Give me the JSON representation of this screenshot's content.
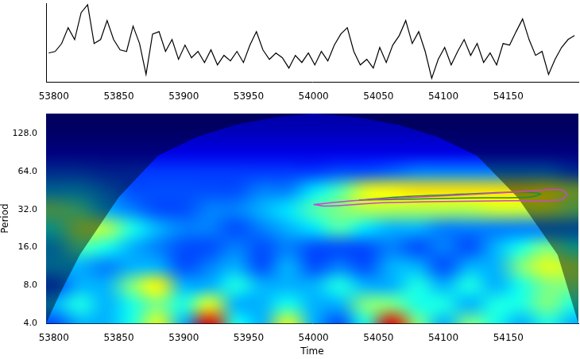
{
  "chart_data": [
    {
      "type": "line",
      "x": [
        53796,
        53801,
        53806,
        53811,
        53816,
        53821,
        53826,
        53831,
        53836,
        53841,
        53846,
        53851,
        53856,
        53861,
        53866,
        53871,
        53876,
        53881,
        53886,
        53891,
        53896,
        53901,
        53906,
        53911,
        53916,
        53921,
        53926,
        53931,
        53936,
        53941,
        53946,
        53951,
        53956,
        53961,
        53966,
        53971,
        53976,
        53981,
        53986,
        53991,
        53996,
        54001,
        54006,
        54011,
        54016,
        54021,
        54026,
        54031,
        54036,
        54041,
        54046,
        54051,
        54056,
        54061,
        54066,
        54071,
        54076,
        54081,
        54086,
        54091,
        54096,
        54101,
        54106,
        54111,
        54116,
        54121,
        54126,
        54131,
        54136,
        54141,
        54146,
        54151,
        54156,
        54161,
        54166,
        54171,
        54176,
        54181,
        54186,
        54191,
        54196,
        54201
      ],
      "values": [
        3.7,
        3.9,
        4.9,
        6.9,
        5.4,
        8.8,
        9.8,
        4.9,
        5.4,
        7.8,
        5.4,
        4.1,
        3.9,
        7.1,
        4.9,
        1.0,
        6.1,
        6.4,
        3.9,
        5.4,
        2.9,
        4.7,
        3.1,
        3.9,
        2.5,
        4.1,
        2.2,
        3.4,
        2.7,
        3.9,
        2.5,
        4.7,
        6.4,
        4.1,
        2.9,
        3.7,
        3.1,
        1.8,
        3.4,
        2.5,
        3.7,
        2.2,
        3.9,
        2.7,
        4.7,
        6.1,
        6.9,
        3.9,
        2.2,
        2.9,
        1.8,
        4.4,
        2.5,
        4.7,
        5.9,
        7.8,
        4.9,
        6.4,
        3.9,
        0.5,
        2.9,
        4.4,
        2.2,
        3.9,
        5.4,
        3.4,
        4.9,
        2.5,
        3.7,
        2.2,
        4.9,
        4.7,
        6.4,
        8.0,
        5.4,
        3.4,
        3.9,
        1.0,
        2.9,
        4.4,
        5.4,
        5.9
      ],
      "color": "#000000",
      "xlim": [
        53794,
        54204
      ],
      "ylim": [
        0,
        10
      ],
      "xticks": [
        53800,
        53850,
        53900,
        53950,
        54000,
        54050,
        54100,
        54150
      ],
      "tick_labels": "x",
      "grid": false
    },
    {
      "type": "heatmap",
      "x_label": "Time",
      "y_label": "Period",
      "x": [
        53800,
        53820,
        53840,
        53860,
        53880,
        53900,
        53920,
        53940,
        53960,
        53980,
        54000,
        54020,
        54040,
        54060,
        54080,
        54100,
        54120,
        54140,
        54160,
        54180,
        54200
      ],
      "y": [
        4,
        5.66,
        8,
        11.31,
        16,
        22.63,
        32,
        45.25,
        64,
        90.51,
        128,
        181.02
      ],
      "cells": [
        [
          2,
          3,
          3,
          4,
          6,
          3,
          9,
          4,
          3,
          6,
          3,
          2,
          4,
          9,
          5,
          3,
          5,
          4,
          3,
          4,
          3
        ],
        [
          3,
          4,
          3,
          4,
          5,
          4,
          6,
          3,
          3,
          4,
          3,
          3,
          5,
          5,
          4,
          4,
          3,
          4,
          4,
          5,
          4
        ],
        [
          2,
          3,
          3,
          5,
          6.3,
          3,
          3,
          4,
          3,
          3,
          3,
          4,
          3,
          3,
          4,
          3,
          4,
          3,
          4,
          5,
          5
        ],
        [
          3,
          3,
          2.5,
          3,
          3,
          2,
          2.5,
          3,
          2,
          3,
          2,
          2.5,
          2,
          3,
          3,
          2,
          3,
          3,
          5,
          6,
          5.5
        ],
        [
          3,
          4.5,
          4,
          3,
          2.5,
          2,
          2,
          2.5,
          2,
          2.5,
          2,
          2,
          2,
          2.5,
          2,
          2.5,
          2,
          3,
          4,
          5,
          4
        ],
        [
          4,
          5.5,
          5.5,
          4,
          3,
          2.5,
          2.5,
          2,
          2.5,
          3,
          3.5,
          4.5,
          3.5,
          3,
          3,
          2.5,
          2.5,
          2.5,
          2.5,
          2.5,
          2.5
        ],
        [
          5,
          4.5,
          3,
          2.5,
          2,
          2,
          2.5,
          2.5,
          3,
          3.5,
          4.5,
          5,
          5.5,
          5.5,
          5.5,
          5.5,
          5.5,
          5.8,
          5.8,
          5.8,
          5
        ],
        [
          3,
          3,
          2.5,
          2,
          2,
          2,
          2,
          2,
          2.5,
          2.5,
          3.5,
          4.5,
          6,
          6.3,
          6.5,
          6.5,
          6.5,
          6.5,
          6.5,
          6.3,
          5.5
        ],
        [
          2,
          2,
          1.8,
          1.8,
          1.8,
          1.8,
          1.8,
          1.8,
          1.8,
          1.8,
          1.8,
          2,
          2,
          2.2,
          2.5,
          2.5,
          2.5,
          2.5,
          2.5,
          2.5,
          2
        ],
        [
          1,
          1,
          1,
          1,
          1,
          1,
          1,
          1,
          1,
          1,
          1,
          1,
          1,
          1,
          1,
          1,
          1,
          1,
          1,
          1,
          1
        ],
        [
          0.6,
          0.6,
          0.6,
          0.6,
          0.6,
          0.6,
          0.6,
          0.6,
          0.6,
          0.6,
          0.6,
          0.6,
          0.6,
          0.6,
          0.6,
          0.6,
          0.6,
          0.6,
          0.6,
          0.6,
          0.6
        ],
        [
          0.4,
          0.4,
          0.4,
          0.4,
          0.4,
          0.4,
          0.4,
          0.4,
          0.4,
          0.4,
          0.4,
          0.4,
          0.4,
          0.4,
          0.4,
          0.4,
          0.4,
          0.4,
          0.4,
          0.4,
          0.4
        ]
      ],
      "color_range": [
        0,
        10
      ],
      "xlim": [
        53794,
        54204
      ],
      "ylim": [
        4,
        184
      ],
      "xticks": [
        53800,
        53850,
        53900,
        53950,
        54000,
        54050,
        54100,
        54150
      ],
      "yticks": [
        {
          "value": 4,
          "label": "4.0"
        },
        {
          "value": 8,
          "label": "8.0"
        },
        {
          "value": 16,
          "label": "16.0"
        },
        {
          "value": 32,
          "label": "32.0"
        },
        {
          "value": 64,
          "label": "64.0"
        },
        {
          "value": 128,
          "label": "128.0"
        }
      ],
      "log": "y",
      "grid": false,
      "coi": {
        "x": [
          53794,
          53805,
          53820,
          53850,
          53880,
          53910,
          53940,
          53970,
          54000,
          54035,
          54065,
          54096,
          54126,
          54157,
          54188,
          54204
        ],
        "period": [
          4,
          7,
          14,
          40,
          85,
          120,
          150,
          172,
          184,
          172,
          150,
          120,
          85,
          40,
          14,
          4
        ]
      },
      "contours": [
        {
          "color": "#cc44cc",
          "points": [
            [
              54000,
              35
            ],
            [
              54030,
              37.5
            ],
            [
              54080,
              40
            ],
            [
              54130,
              42.5
            ],
            [
              54170,
              45
            ],
            [
              54190,
              46
            ],
            [
              54195,
              42
            ],
            [
              54190,
              38
            ],
            [
              54150,
              37.5
            ],
            [
              54100,
              37
            ],
            [
              54050,
              36
            ],
            [
              54010,
              34
            ],
            [
              54000,
              35
            ]
          ]
        },
        {
          "color": "#1f8f3a",
          "points": [
            [
              54035,
              38
            ],
            [
              54070,
              40.5
            ],
            [
              54120,
              42.5
            ],
            [
              54160,
              44
            ],
            [
              54175,
              42.5
            ],
            [
              54165,
              40
            ],
            [
              54120,
              39.5
            ],
            [
              54070,
              38.5
            ],
            [
              54035,
              38
            ]
          ]
        }
      ]
    }
  ]
}
